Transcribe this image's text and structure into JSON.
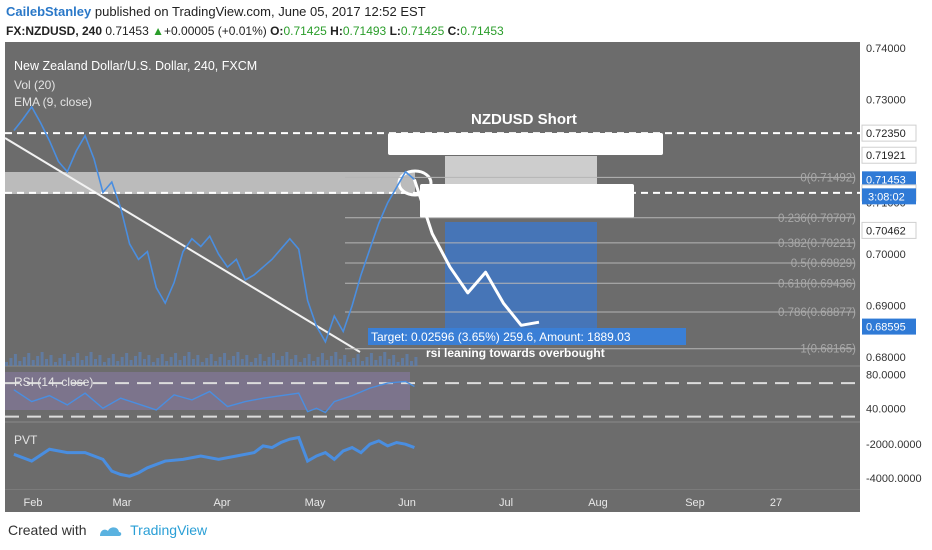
{
  "header": {
    "user": "CailebStanley",
    "published": "published on TradingView.com, June 05, 2017 12:52 EST",
    "symbol": "FX:NZDUSD, 240",
    "price": "0.71453",
    "change": "+0.00005 (+0.01%)",
    "o_label": "O:",
    "o": "0.71425",
    "h_label": "H:",
    "h": "0.71493",
    "l_label": "L:",
    "l": "0.71425",
    "c_label": "C:",
    "c": "0.71453"
  },
  "chart_data": {
    "type": "line",
    "title": "New Zealand Dollar/U.S. Dollar, 240, FXCM",
    "indicators": [
      "Vol (20)",
      "EMA (9, close)"
    ],
    "annotation_title": "NZDUSD Short",
    "x_tick_labels": [
      "Feb",
      "Mar",
      "Apr",
      "May",
      "Jun",
      "Jul",
      "Aug",
      "Sep",
      "27"
    ],
    "price_axis": {
      "ylim": [
        0.6783,
        0.7408
      ],
      "ticks": [
        0.74,
        0.73,
        0.72,
        0.71,
        0.7,
        0.69,
        0.68
      ],
      "tick_labels": [
        "0.74000",
        "0.73000",
        "0.72000",
        "0.71000",
        "0.70000",
        "0.69000",
        "0.68000"
      ],
      "price_labels": [
        {
          "value": 0.7235,
          "label": "0.72350",
          "style": "white"
        },
        {
          "value": 0.71921,
          "label": "0.71921",
          "style": "white"
        },
        {
          "value": 0.71453,
          "label": "0.71453",
          "style": "blue"
        },
        {
          "value": 0.71191,
          "label": "0.71191",
          "style": "white"
        },
        {
          "value": 0.70462,
          "label": "0.70462",
          "style": "white"
        },
        {
          "value": 0.68595,
          "label": "0.68595",
          "style": "blue"
        }
      ],
      "countdown": "3:08:02"
    },
    "fib_levels": [
      {
        "ratio": 0,
        "price": 0.71492,
        "label": "0(0.71492)"
      },
      {
        "ratio": 0.236,
        "price": 0.70707,
        "label": "0.236(0.70707)"
      },
      {
        "ratio": 0.382,
        "price": 0.70221,
        "label": "0.382(0.70221)"
      },
      {
        "ratio": 0.5,
        "price": 0.69829,
        "label": "0.5(0.69829)"
      },
      {
        "ratio": 0.618,
        "price": 0.69436,
        "label": "0.618(0.69436)"
      },
      {
        "ratio": 0.786,
        "price": 0.68877,
        "label": "0.786(0.68877)"
      },
      {
        "ratio": 1,
        "price": 0.68165,
        "label": "1(0.68165)"
      }
    ],
    "dashed_levels": [
      0.7235,
      0.7119
    ],
    "target_label": "Target: 0.02596 (3.65%) 259.6, Amount: 1889.03",
    "note": "rsi leaning towards overbought",
    "price_path": [
      [
        2,
        0.724
      ],
      [
        4,
        0.7262
      ],
      [
        6,
        0.7286
      ],
      [
        8,
        0.7255
      ],
      [
        10,
        0.722
      ],
      [
        12,
        0.718
      ],
      [
        14,
        0.716
      ],
      [
        16,
        0.72
      ],
      [
        18,
        0.723
      ],
      [
        20,
        0.7185
      ],
      [
        22,
        0.712
      ],
      [
        24,
        0.714
      ],
      [
        26,
        0.709
      ],
      [
        28,
        0.702
      ],
      [
        30,
        0.699
      ],
      [
        32,
        0.7005
      ],
      [
        34,
        0.6935
      ],
      [
        36,
        0.6905
      ],
      [
        38,
        0.6945
      ],
      [
        40,
        0.7005
      ],
      [
        42,
        0.703
      ],
      [
        44,
        0.7015
      ],
      [
        46,
        0.7035
      ],
      [
        48,
        0.7
      ],
      [
        50,
        0.6975
      ],
      [
        52,
        0.699
      ],
      [
        54,
        0.695
      ],
      [
        56,
        0.696
      ],
      [
        58,
        0.6975
      ],
      [
        60,
        0.699
      ],
      [
        62,
        0.701
      ],
      [
        64,
        0.703
      ],
      [
        66,
        0.701
      ],
      [
        68,
        0.691
      ],
      [
        70,
        0.686
      ],
      [
        72,
        0.683
      ],
      [
        74,
        0.688
      ],
      [
        76,
        0.685
      ],
      [
        78,
        0.69
      ],
      [
        80,
        0.696
      ],
      [
        82,
        0.701
      ],
      [
        84,
        0.706
      ],
      [
        86,
        0.71
      ],
      [
        88,
        0.713
      ],
      [
        90,
        0.716
      ],
      [
        92,
        0.7145
      ]
    ],
    "projection_path": [
      [
        92,
        0.7145
      ],
      [
        96,
        0.704
      ],
      [
        100,
        0.6975
      ],
      [
        104,
        0.6925
      ],
      [
        108,
        0.6965
      ],
      [
        112,
        0.6905
      ],
      [
        116,
        0.6862
      ],
      [
        120,
        0.6868
      ]
    ],
    "rsi": {
      "label": "RSI (14, close)",
      "ylim": [
        26,
        88
      ],
      "tick_labels": [
        "80.0000",
        "40.0000"
      ],
      "ticks": [
        80,
        40
      ],
      "bands": [
        70,
        30
      ],
      "values": [
        [
          2,
          62
        ],
        [
          6,
          48
        ],
        [
          10,
          55
        ],
        [
          14,
          44
        ],
        [
          18,
          58
        ],
        [
          22,
          40
        ],
        [
          26,
          52
        ],
        [
          30,
          45
        ],
        [
          34,
          38
        ],
        [
          38,
          56
        ],
        [
          42,
          50
        ],
        [
          46,
          60
        ],
        [
          50,
          42
        ],
        [
          54,
          48
        ],
        [
          58,
          52
        ],
        [
          62,
          55
        ],
        [
          66,
          58
        ],
        [
          68,
          36
        ],
        [
          70,
          40
        ],
        [
          72,
          35
        ],
        [
          74,
          48
        ],
        [
          78,
          55
        ],
        [
          82,
          64
        ],
        [
          86,
          70
        ],
        [
          90,
          72
        ],
        [
          92,
          66
        ]
      ]
    },
    "pvt": {
      "label": "PVT",
      "ylim": [
        -4600,
        -800
      ],
      "tick_labels": [
        "-2000.0000",
        "-4000.0000"
      ],
      "ticks": [
        -2000,
        -4000
      ],
      "values": [
        [
          2,
          -2600
        ],
        [
          6,
          -3000
        ],
        [
          10,
          -2300
        ],
        [
          14,
          -2500
        ],
        [
          18,
          -2500
        ],
        [
          22,
          -2900
        ],
        [
          24,
          -3600
        ],
        [
          26,
          -3800
        ],
        [
          28,
          -3900
        ],
        [
          30,
          -3700
        ],
        [
          32,
          -3400
        ],
        [
          34,
          -3200
        ],
        [
          36,
          -3000
        ],
        [
          40,
          -2900
        ],
        [
          44,
          -2700
        ],
        [
          48,
          -2900
        ],
        [
          52,
          -2700
        ],
        [
          56,
          -2500
        ],
        [
          58,
          -2100
        ],
        [
          60,
          -2200
        ],
        [
          62,
          -1900
        ],
        [
          64,
          -1700
        ],
        [
          66,
          -1600
        ],
        [
          68,
          -3000
        ],
        [
          70,
          -2700
        ],
        [
          72,
          -2500
        ],
        [
          74,
          -2900
        ],
        [
          76,
          -2400
        ],
        [
          78,
          -2200
        ],
        [
          80,
          -2500
        ],
        [
          82,
          -2000
        ],
        [
          84,
          -1800
        ],
        [
          86,
          -2100
        ],
        [
          88,
          -1900
        ],
        [
          90,
          -2000
        ],
        [
          92,
          -2200
        ]
      ]
    }
  },
  "footer": {
    "created_with": "Created with",
    "brand": "TradingView"
  },
  "colors": {
    "panel": "#6c6c6c",
    "axis_panel": "#ffffff",
    "line": "#4a8ee0",
    "accent_blue": "#2f7ad6",
    "green": "#2a9d2a"
  }
}
